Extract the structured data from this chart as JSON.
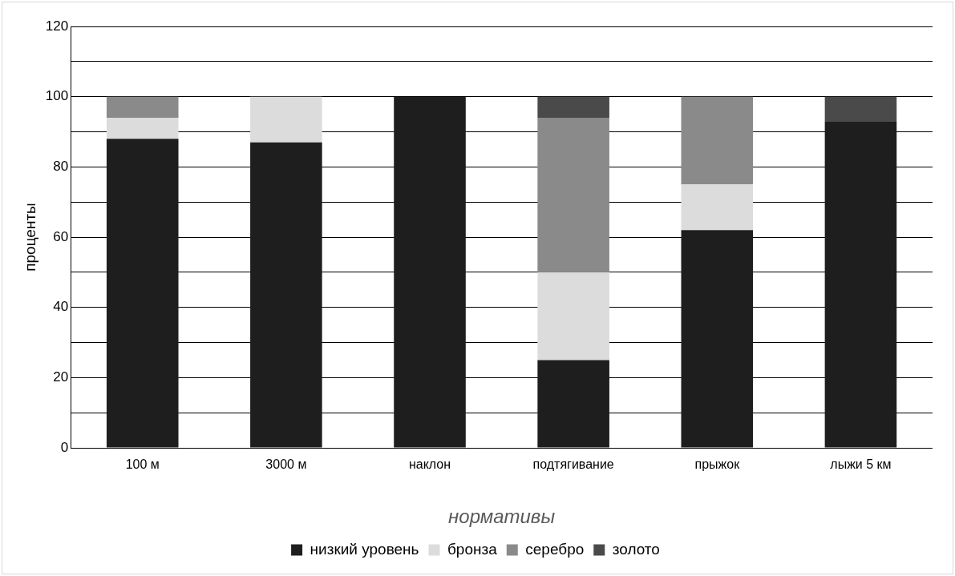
{
  "chart_data": {
    "type": "bar",
    "stacked": true,
    "xlabel": "нормативы",
    "ylabel": "проценты",
    "categories": [
      "100 м",
      "3000 м",
      "наклон",
      "подтягивание",
      "прыжок",
      "лыжи 5 км"
    ],
    "series": [
      {
        "name": "низкий уровень",
        "color": "#1e1e1e",
        "values": [
          88,
          87,
          100,
          25,
          62,
          93
        ]
      },
      {
        "name": "бронза",
        "color": "#dcdcdc",
        "values": [
          6,
          13,
          null,
          25,
          13,
          null
        ]
      },
      {
        "name": "серебро",
        "color": "#8a8a8a",
        "values": [
          6,
          null,
          null,
          44,
          25,
          null
        ]
      },
      {
        "name": "золото",
        "color": "#4a4a4a",
        "values": [
          null,
          null,
          null,
          6,
          null,
          7
        ]
      }
    ],
    "ylim": [
      0,
      120
    ],
    "yticks": [
      0,
      {
        "value": 10,
        "label": null
      },
      20,
      {
        "value": 30,
        "label": null
      },
      40,
      {
        "value": 50,
        "label": null
      },
      60,
      {
        "value": 70,
        "label": null
      },
      80,
      {
        "value": 90,
        "label": null
      },
      100,
      {
        "value": 110,
        "label": null
      },
      120
    ],
    "grid": "y",
    "legend": "bottom"
  }
}
